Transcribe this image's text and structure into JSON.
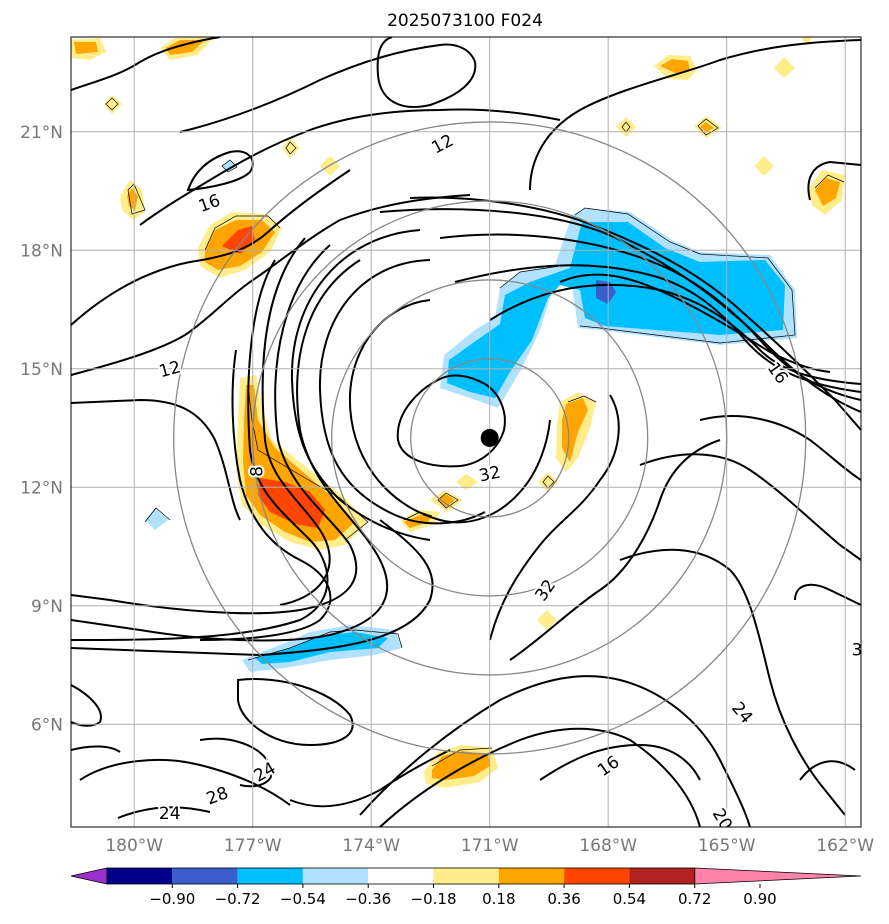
{
  "chart_data": {
    "type": "contour",
    "title": "2025073100 F024",
    "lon_ticks": [
      {
        "value": -180,
        "label": "180°W"
      },
      {
        "value": -177,
        "label": "177°W"
      },
      {
        "value": -174,
        "label": "174°W"
      },
      {
        "value": -171,
        "label": "171°W"
      },
      {
        "value": -168,
        "label": "168°W"
      },
      {
        "value": -165,
        "label": "165°W"
      },
      {
        "value": -162,
        "label": "162°W"
      }
    ],
    "lat_ticks": [
      {
        "value": 6,
        "label": "6°N"
      },
      {
        "value": 9,
        "label": "9°N"
      },
      {
        "value": 12,
        "label": "12°N"
      },
      {
        "value": 15,
        "label": "15°N"
      },
      {
        "value": 18,
        "label": "18°N"
      },
      {
        "value": 21,
        "label": "21°N"
      }
    ],
    "lon_range": [
      -181.6,
      -161.6
    ],
    "lat_range": [
      3.4,
      23.4
    ],
    "grid": true,
    "storm_center": {
      "lon": -171.0,
      "lat": 13.25
    },
    "range_rings_deg": [
      2,
      4,
      6,
      8
    ],
    "colorbar": {
      "ticks": [
        "−0.90",
        "−0.72",
        "−0.54",
        "−0.36",
        "−0.18",
        "0.18",
        "0.36",
        "0.54",
        "0.72",
        "0.90"
      ],
      "colors": [
        "#9932cc",
        "#00008b",
        "#3a5fcd",
        "#00bfff",
        "#b0e2ff",
        "#ffffff",
        "#ffec8b",
        "#ffa500",
        "#ff4500",
        "#b22222",
        "#ff82ab"
      ],
      "extend": "both"
    },
    "contour_labels": [
      {
        "text": "12",
        "lon": -172.2,
        "lat": 20.7,
        "rot": -28
      },
      {
        "text": "16",
        "lon": -178.1,
        "lat": 19.2,
        "rot": -20
      },
      {
        "text": "12",
        "lon": -179.1,
        "lat": 15.0,
        "rot": -15
      },
      {
        "text": "8",
        "lon": -176.9,
        "lat": 12.4,
        "rot": -90
      },
      {
        "text": "32",
        "lon": -171.0,
        "lat": 12.35,
        "rot": -12
      },
      {
        "text": "32",
        "lon": -169.6,
        "lat": 9.4,
        "rot": -55
      },
      {
        "text": "16",
        "lon": -163.7,
        "lat": 14.9,
        "rot": 55
      },
      {
        "text": "24",
        "lon": -164.6,
        "lat": 6.3,
        "rot": 50
      },
      {
        "text": "24",
        "lon": -176.7,
        "lat": 4.8,
        "rot": -30
      },
      {
        "text": "28",
        "lon": -177.9,
        "lat": 4.2,
        "rot": -20
      },
      {
        "text": "24",
        "lon": -179.1,
        "lat": 3.75,
        "rot": 0
      },
      {
        "text": "16",
        "lon": -168.0,
        "lat": 4.95,
        "rot": -35
      },
      {
        "text": "20",
        "lon": -165.1,
        "lat": 3.6,
        "rot": 60
      },
      {
        "text": "3",
        "lon": -161.7,
        "lat": 7.9,
        "rot": 0
      }
    ]
  }
}
